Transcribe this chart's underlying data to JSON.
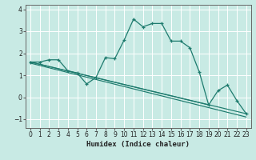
{
  "xlabel": "Humidex (Indice chaleur)",
  "bg_color": "#c8eae4",
  "grid_color": "#ffffff",
  "line_color": "#1e7b6e",
  "xlim": [
    -0.5,
    23.5
  ],
  "ylim": [
    -1.4,
    4.2
  ],
  "xticks": [
    0,
    1,
    2,
    3,
    4,
    5,
    6,
    7,
    8,
    9,
    10,
    11,
    12,
    13,
    14,
    15,
    16,
    17,
    18,
    19,
    20,
    21,
    22,
    23
  ],
  "yticks": [
    -1,
    0,
    1,
    2,
    3,
    4
  ],
  "y_main": [
    1.6,
    1.6,
    1.7,
    1.7,
    1.2,
    1.1,
    0.6,
    0.9,
    1.8,
    1.75,
    2.6,
    3.55,
    3.2,
    3.35,
    3.35,
    2.55,
    2.55,
    2.25,
    1.15,
    -0.35,
    0.3,
    0.55,
    -0.15,
    -0.75
  ],
  "diag_lines": [
    {
      "x": [
        0,
        23
      ],
      "y": [
        1.6,
        -0.75
      ]
    },
    {
      "x": [
        0,
        19
      ],
      "y": [
        1.6,
        -0.35
      ]
    },
    {
      "x": [
        0,
        23
      ],
      "y": [
        1.55,
        -0.9
      ]
    }
  ],
  "figsize": [
    3.2,
    2.0
  ],
  "dpi": 100
}
